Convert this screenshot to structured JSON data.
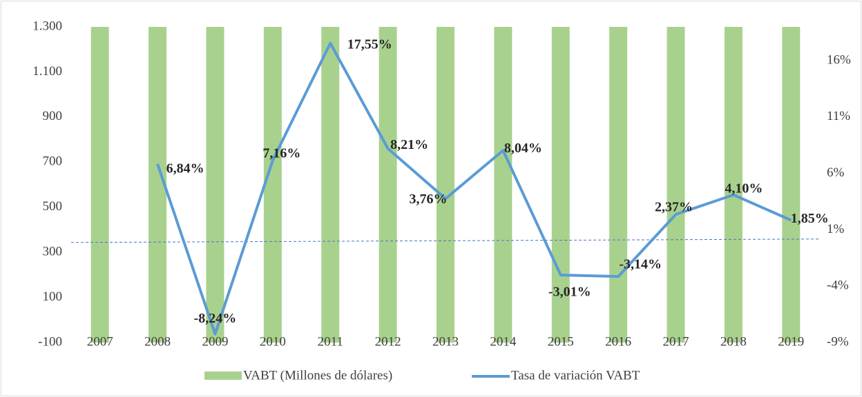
{
  "chart_data": {
    "type": "bar_line",
    "categories": [
      "2007",
      "2008",
      "2009",
      "2010",
      "2011",
      "2012",
      "2013",
      "2014",
      "2015",
      "2016",
      "2017",
      "2018",
      "2019"
    ],
    "series": [
      {
        "name": "VABT  (Millones de dólares)",
        "color": "#a9d18e",
        "values": [
          1300,
          1300,
          1300,
          1300,
          1300,
          1300,
          1300,
          1300,
          1300,
          1300,
          1300,
          1300,
          1300
        ]
      },
      {
        "name": "Tasa de variación VABT",
        "color": "#5b9bd5",
        "axis": "y2",
        "values": [
          null,
          6.84,
          -8.24,
          7.16,
          17.55,
          8.21,
          3.76,
          8.04,
          -3.01,
          -3.14,
          2.37,
          4.1,
          1.85
        ],
        "value_labels": [
          null,
          "6,84%",
          "-8,24%",
          "7,16%",
          "17,55%",
          "8,21%",
          "3,76%",
          "8,04%",
          "-3,01%",
          "-3,14%",
          "2,37%",
          "4,10%",
          "1,85%"
        ]
      }
    ],
    "ylim": [
      -100,
      1300
    ],
    "yticks": [
      {
        "value": -100,
        "label": "-100"
      },
      100,
      300,
      500,
      700,
      900,
      {
        "value": 1100,
        "label": "1.100"
      },
      {
        "value": 1300,
        "label": "1.300"
      }
    ],
    "y2lim": [
      -9,
      19
    ],
    "y2ticks": [
      {
        "value": -9,
        "label": "-9%"
      },
      {
        "value": -4,
        "label": "-4%"
      },
      {
        "value": 1,
        "label": "1%"
      },
      {
        "value": 6,
        "label": "6%"
      },
      {
        "value": 11,
        "label": "11%"
      },
      {
        "value": 16,
        "label": "16%"
      }
    ],
    "legend": "bottom"
  }
}
